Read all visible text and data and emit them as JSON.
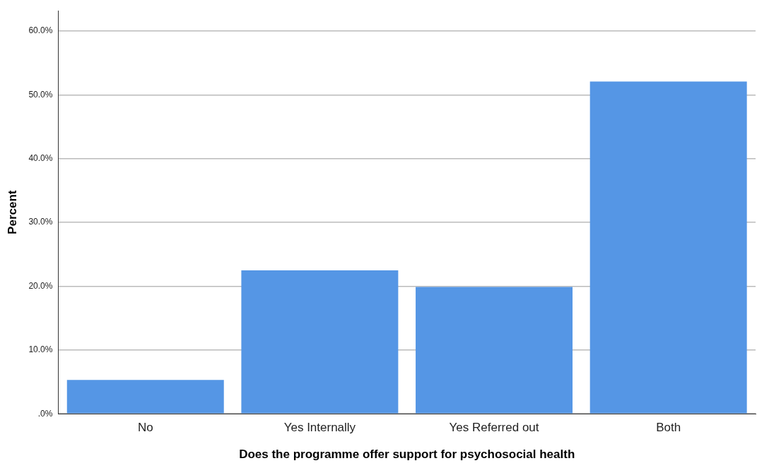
{
  "chart_data": {
    "type": "bar",
    "xlabel": "Does the programme offer support for psychosocial health",
    "ylabel": "Percent",
    "categories": [
      "No",
      "Yes Internally",
      "Yes Referred out",
      "Both"
    ],
    "values": [
      5.3,
      22.5,
      19.9,
      52.1
    ],
    "color": "#5596e5",
    "ylim": [
      0,
      63.2
    ],
    "yticks": [
      {
        "value": 0,
        "label": ".0%"
      },
      {
        "value": 10,
        "label": "10.0%"
      },
      {
        "value": 20,
        "label": "20.0%"
      },
      {
        "value": 30,
        "label": "30.0%"
      },
      {
        "value": 40,
        "label": "40.0%"
      },
      {
        "value": 50,
        "label": "50.0%"
      },
      {
        "value": 60,
        "label": "60.0%"
      }
    ],
    "grid": "y"
  }
}
